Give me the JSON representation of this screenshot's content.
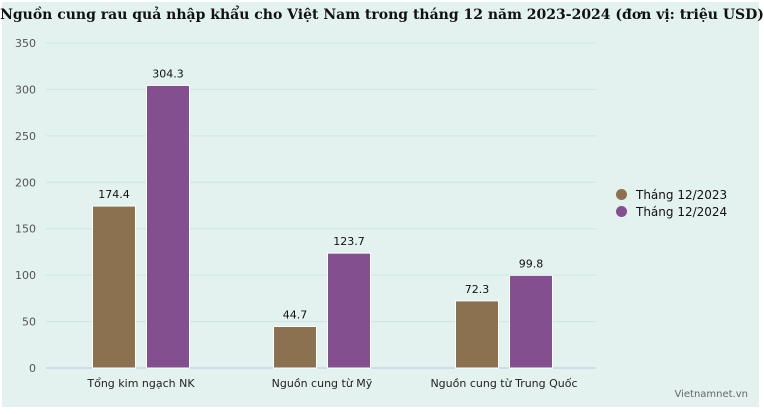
{
  "chart_data": {
    "type": "bar",
    "title": "Nguồn cung rau quả nhập khẩu cho Việt Nam trong tháng 12 năm 2023-2024 (đơn vị: triệu USD)",
    "categories": [
      "Tổng kim ngạch NK",
      "Nguồn cung từ Mỹ",
      "Nguồn cung từ Trung Quốc"
    ],
    "series": [
      {
        "name": "Tháng 12/2023",
        "values": [
          174.4,
          44.7,
          72.3
        ],
        "color": "#8b7150"
      },
      {
        "name": "Tháng 12/2024",
        "values": [
          304.3,
          123.7,
          99.8
        ],
        "color": "#834f8e"
      }
    ],
    "ylim": [
      0,
      350
    ],
    "yticks": [
      0,
      50,
      100,
      150,
      200,
      250,
      300,
      350
    ],
    "grid": true,
    "legend_position": "right",
    "data_labels": true
  },
  "watermark": "Vietnamnet.vn"
}
